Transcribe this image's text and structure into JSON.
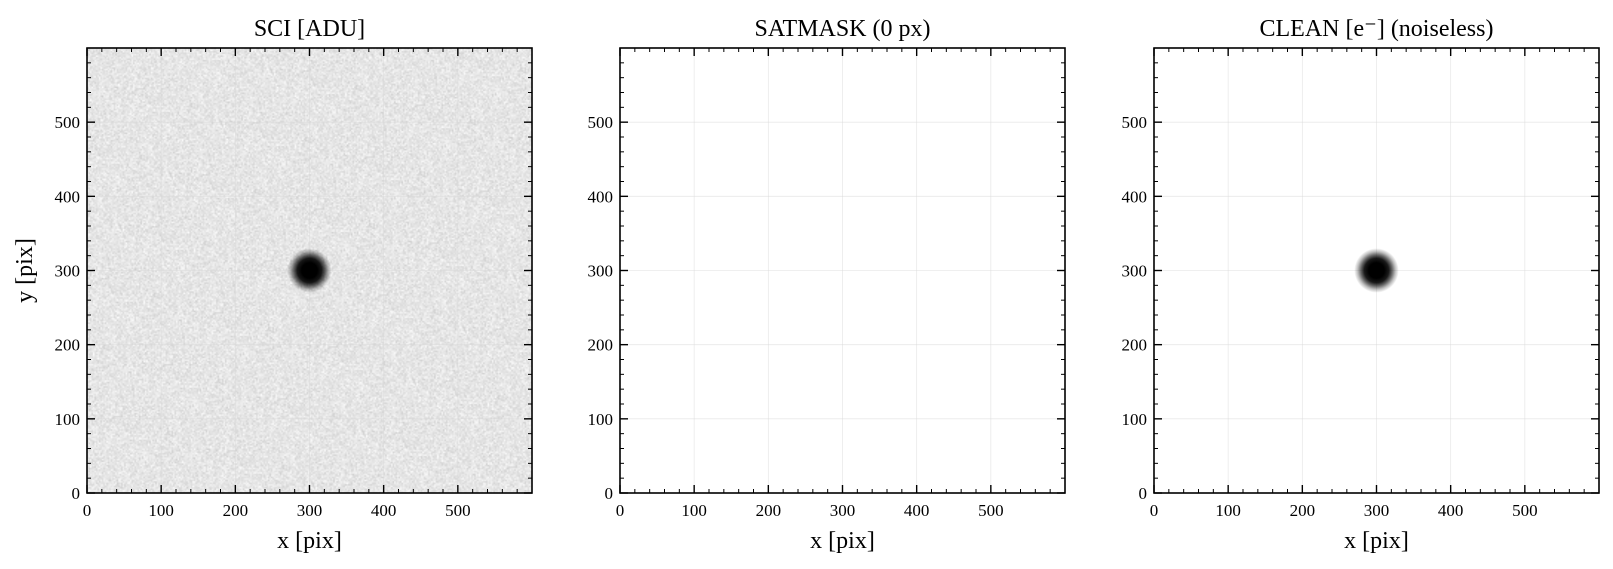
{
  "chart_data": [
    {
      "type": "heatmap",
      "title": "SCI [ADU]",
      "xlabel": "x [pix]",
      "ylabel": "y [pix]",
      "xlim": [
        0,
        600
      ],
      "ylim": [
        0,
        600
      ],
      "xticks": [
        0,
        100,
        200,
        300,
        400,
        500
      ],
      "yticks": [
        0,
        100,
        200,
        300,
        400,
        500
      ],
      "grid": true,
      "colormap": "gray_r",
      "background_level": 0.1,
      "noise": true,
      "sources": [
        {
          "x": 300,
          "y": 300,
          "sigma": 10,
          "peak": 1.0
        }
      ]
    },
    {
      "type": "heatmap",
      "title": "SATMASK (0 px)",
      "xlabel": "x [pix]",
      "ylabel": "",
      "xlim": [
        0,
        600
      ],
      "ylim": [
        0,
        600
      ],
      "xticks": [
        0,
        100,
        200,
        300,
        400,
        500
      ],
      "yticks": [
        0,
        100,
        200,
        300,
        400,
        500
      ],
      "grid": true,
      "colormap": "gray_r",
      "background_level": 0,
      "noise": false,
      "sources": []
    },
    {
      "type": "heatmap",
      "title": "CLEAN [e⁻] (noiseless)",
      "xlabel": "x [pix]",
      "ylabel": "",
      "xlim": [
        0,
        600
      ],
      "ylim": [
        0,
        600
      ],
      "xticks": [
        0,
        100,
        200,
        300,
        400,
        500
      ],
      "yticks": [
        0,
        100,
        200,
        300,
        400,
        500
      ],
      "grid": true,
      "colormap": "gray_r",
      "background_level": 0,
      "noise": false,
      "sources": [
        {
          "x": 300,
          "y": 300,
          "sigma": 10,
          "peak": 1.0
        }
      ]
    }
  ]
}
